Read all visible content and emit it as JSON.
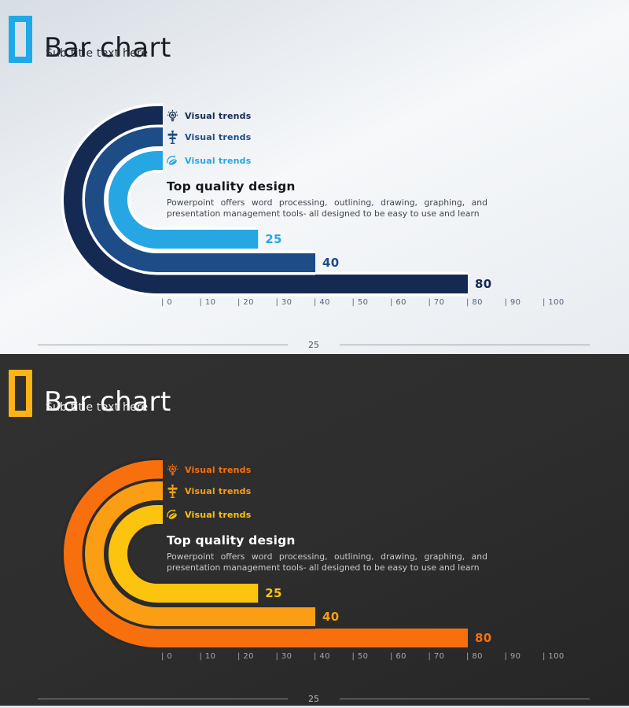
{
  "slides": [
    {
      "theme": "light",
      "header": {
        "title": "Bar chart",
        "subtitle": "Sub title text here",
        "logo_color": "#1ea9e8"
      },
      "content": {
        "heading": "Top quality design",
        "body": "Powerpoint offers word processing, outlining, drawing, graphing, and presentation management tools- all designed to be easy to use and learn"
      },
      "footer": {
        "page_number": "25"
      },
      "colors": {
        "background_top": "#d7dde4",
        "background_mid": "#f6f8fa",
        "background_bottom": "#e8ecf0",
        "title": "#1b1e24",
        "subtitle": "#2a2e35",
        "heading": "#15171c",
        "body_text": "#42464d",
        "axis_text": "#55657a",
        "footer_line": "#97a3ae",
        "footer_text": "#4a5663",
        "ring_gap": "#ffffff"
      }
    },
    {
      "theme": "dark",
      "header": {
        "title": "Bar chart",
        "subtitle": "Sub title text here",
        "logo_color": "#fcb316"
      },
      "content": {
        "heading": "Top quality design",
        "body": "Powerpoint offers word processing, outlining, drawing, graphing, and presentation management tools- all designed to be easy to use and learn"
      },
      "footer": {
        "page_number": "25"
      },
      "colors": {
        "background_top": "#303030",
        "background_mid": "#2e2e2e",
        "background_bottom": "#262626",
        "title": "#ffffff",
        "subtitle": "#ededed",
        "heading": "#ffffff",
        "body_text": "#c9c9c9",
        "axis_text": "#a6a6a6",
        "footer_line": "#8b8b8b",
        "footer_text": "#bdbdbd",
        "ring_gap": "#2b2b2b"
      }
    }
  ],
  "chart_data": [
    {
      "type": "bar",
      "layout": "curved-racetrack-horizontal",
      "title": "Bar chart",
      "series": [
        {
          "name": "Visual trends",
          "icon": "lightbulb-icon",
          "value": 80,
          "color": "#152a52"
        },
        {
          "name": "Visual trends",
          "icon": "signpost-icon",
          "value": 40,
          "color": "#1d4c86"
        },
        {
          "name": "Visual trends",
          "icon": "handshake-icon",
          "value": 25,
          "color": "#26a7e4"
        }
      ],
      "xlim": [
        0,
        100
      ],
      "ticks": [
        0,
        10,
        20,
        30,
        40,
        50,
        60,
        70,
        80,
        90,
        100
      ],
      "tick_prefix": "| ",
      "legend_position": "top-right-of-rings",
      "grid": false
    },
    {
      "type": "bar",
      "layout": "curved-racetrack-horizontal",
      "title": "Bar chart",
      "series": [
        {
          "name": "Visual trends",
          "icon": "lightbulb-icon",
          "value": 80,
          "color": "#f8700d"
        },
        {
          "name": "Visual trends",
          "icon": "signpost-icon",
          "value": 40,
          "color": "#fb9e13"
        },
        {
          "name": "Visual trends",
          "icon": "handshake-icon",
          "value": 25,
          "color": "#fcc30f"
        }
      ],
      "xlim": [
        0,
        100
      ],
      "ticks": [
        0,
        10,
        20,
        30,
        40,
        50,
        60,
        70,
        80,
        90,
        100
      ],
      "tick_prefix": "| ",
      "legend_position": "top-right-of-rings",
      "grid": false
    }
  ]
}
